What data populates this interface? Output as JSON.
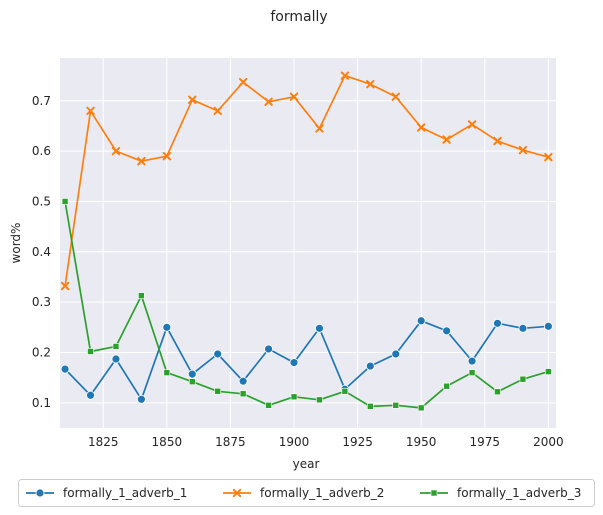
{
  "chart_data": {
    "type": "line",
    "title": "formally",
    "xlabel": "year",
    "ylabel": "word%",
    "xlim": [
      1808,
      2003
    ],
    "ylim": [
      0.05,
      0.785
    ],
    "x_ticks": [
      1825,
      1850,
      1875,
      1900,
      1925,
      1950,
      1975,
      2000
    ],
    "y_ticks": [
      0.1,
      0.2,
      0.3,
      0.4,
      0.5,
      0.6,
      0.7
    ],
    "grid": true,
    "legend_position": "bottom",
    "x": [
      1810,
      1820,
      1830,
      1840,
      1850,
      1860,
      1870,
      1880,
      1890,
      1900,
      1910,
      1920,
      1930,
      1940,
      1950,
      1960,
      1970,
      1980,
      1990,
      2000
    ],
    "series": [
      {
        "name": "formally_1_adverb_1",
        "color": "#1f77b4",
        "marker": "circle",
        "values": [
          0.167,
          0.115,
          0.187,
          0.107,
          0.25,
          0.157,
          0.197,
          0.143,
          0.207,
          0.18,
          0.248,
          0.127,
          0.173,
          0.197,
          0.263,
          0.243,
          0.183,
          0.258,
          0.248,
          0.252
        ]
      },
      {
        "name": "formally_1_adverb_2",
        "color": "#ff7f0e",
        "marker": "x",
        "values": [
          0.332,
          0.68,
          0.6,
          0.58,
          0.59,
          0.702,
          0.68,
          0.737,
          0.698,
          0.708,
          0.645,
          0.75,
          0.733,
          0.708,
          0.647,
          0.623,
          0.653,
          0.62,
          0.602,
          0.588
        ]
      },
      {
        "name": "formally_1_adverb_3",
        "color": "#2ca02c",
        "marker": "square",
        "values": [
          0.5,
          0.202,
          0.212,
          0.313,
          0.16,
          0.142,
          0.123,
          0.118,
          0.095,
          0.112,
          0.106,
          0.123,
          0.093,
          0.095,
          0.09,
          0.133,
          0.16,
          0.122,
          0.147,
          0.162
        ]
      }
    ]
  }
}
